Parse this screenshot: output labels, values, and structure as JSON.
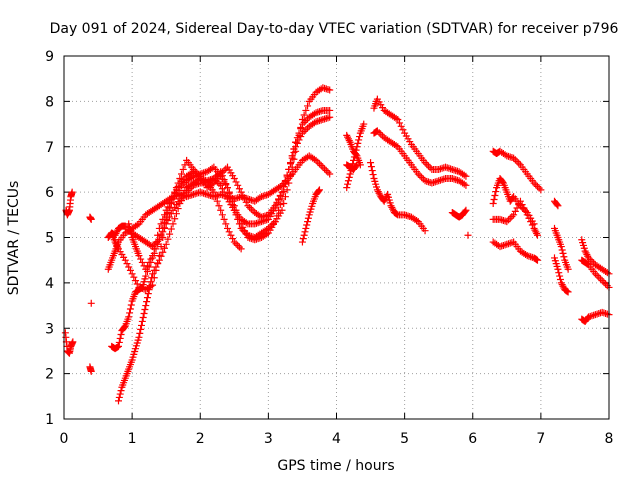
{
  "chart_data": {
    "type": "scatter",
    "title": "Day 091 of 2024, Sidereal Day-to-day VTEC variation (SDTVAR) for receiver p796",
    "xlabel": "GPS time / hours",
    "ylabel": "SDTVAR / TECUs",
    "xlim": [
      0,
      8
    ],
    "ylim": [
      1,
      9
    ],
    "xticks": [
      0,
      1,
      2,
      3,
      4,
      5,
      6,
      7,
      8
    ],
    "yticks": [
      1,
      2,
      3,
      4,
      5,
      6,
      7,
      8,
      9
    ],
    "grid": true,
    "marker": "+",
    "color": "#ff0000",
    "series": [
      {
        "name": "trace-01",
        "x": [
          0.03,
          0.05,
          0.08,
          0.1,
          0.12
        ],
        "y": [
          5.6,
          5.5,
          5.6,
          5.9,
          6.0
        ]
      },
      {
        "name": "trace-02",
        "x": [
          0.02,
          0.05,
          0.08,
          0.1,
          0.13
        ],
        "y": [
          2.9,
          2.5,
          2.45,
          2.6,
          2.7
        ]
      },
      {
        "name": "trace-03",
        "x": [
          0.38,
          0.4
        ],
        "y": [
          5.45,
          5.4
        ]
      },
      {
        "name": "trace-04",
        "x": [
          0.4
        ],
        "y": [
          3.55
        ]
      },
      {
        "name": "trace-05",
        "x": [
          0.38,
          0.4
        ],
        "y": [
          2.15,
          2.05
        ]
      },
      {
        "name": "trace-06",
        "x": [
          0.65,
          0.7,
          0.75,
          0.8,
          0.9,
          1.0,
          1.1,
          1.2,
          1.3,
          1.4,
          1.5,
          1.6,
          1.7,
          1.8,
          1.9,
          2.0,
          2.1,
          2.2,
          2.3,
          2.4,
          2.5,
          2.6,
          2.7,
          2.8,
          2.9,
          3.0,
          3.1,
          3.2,
          3.3,
          3.4,
          3.5,
          3.6,
          3.7,
          3.8,
          3.9
        ],
        "y": [
          4.3,
          4.5,
          4.7,
          4.9,
          5.1,
          5.2,
          5.3,
          5.5,
          5.6,
          5.7,
          5.8,
          5.9,
          5.95,
          5.9,
          5.95,
          6.0,
          5.95,
          5.9,
          5.95,
          5.9,
          5.85,
          5.9,
          5.85,
          5.8,
          5.9,
          5.95,
          6.05,
          6.15,
          6.3,
          6.5,
          6.7,
          6.8,
          6.7,
          6.55,
          6.4
        ]
      },
      {
        "name": "trace-07",
        "x": [
          0.65,
          0.7,
          0.75,
          0.8,
          0.9,
          1.0,
          1.1,
          1.2,
          1.3,
          1.4,
          1.5,
          1.6,
          1.7,
          1.8,
          1.9,
          2.0,
          2.1,
          2.2,
          2.3,
          2.4,
          2.5,
          2.6,
          2.7,
          2.8,
          2.9,
          3.0,
          3.1,
          3.2,
          3.3,
          3.4,
          3.5,
          3.6,
          3.7,
          3.8,
          3.9
        ],
        "y": [
          5.0,
          5.1,
          4.9,
          4.75,
          4.5,
          4.2,
          3.9,
          3.85,
          3.95,
          4.6,
          5.4,
          5.9,
          6.3,
          6.7,
          6.5,
          6.35,
          6.1,
          6.2,
          6.4,
          6.55,
          6.3,
          6.0,
          5.7,
          5.55,
          5.45,
          5.5,
          5.7,
          6.0,
          6.5,
          7.0,
          7.3,
          7.45,
          7.55,
          7.6,
          7.65
        ]
      },
      {
        "name": "trace-08",
        "x": [
          0.7,
          0.75,
          0.8,
          0.85,
          0.9,
          1.0,
          1.1,
          1.2,
          1.3,
          1.4,
          1.5,
          1.6,
          1.7,
          1.8,
          1.9,
          2.0,
          2.1,
          2.2,
          2.3,
          2.4,
          2.5,
          2.6,
          2.7,
          2.8,
          2.9,
          3.0,
          3.1,
          3.2,
          3.3,
          3.4,
          3.5,
          3.6,
          3.7,
          3.8,
          3.9
        ],
        "y": [
          5.1,
          5.05,
          5.2,
          5.25,
          5.25,
          5.1,
          5.0,
          4.9,
          4.8,
          4.95,
          5.3,
          5.6,
          5.85,
          6.1,
          6.2,
          6.3,
          6.25,
          6.3,
          6.15,
          5.85,
          5.6,
          5.4,
          5.3,
          5.3,
          5.35,
          5.4,
          5.65,
          6.0,
          6.5,
          7.1,
          7.5,
          7.65,
          7.75,
          7.8,
          7.8
        ]
      },
      {
        "name": "trace-09",
        "x": [
          0.8,
          0.85,
          0.9,
          0.95,
          1.0,
          1.05,
          1.1,
          1.15,
          1.2,
          1.25,
          1.3,
          1.4,
          1.5,
          1.6,
          1.7,
          1.8,
          1.9,
          2.0,
          2.1,
          2.2,
          2.3,
          2.4,
          2.5,
          2.6,
          2.7,
          2.8,
          2.9,
          3.0,
          3.1,
          3.2,
          3.3,
          3.4,
          3.5,
          3.6,
          3.7,
          3.8,
          3.9
        ],
        "y": [
          1.4,
          1.7,
          1.9,
          2.1,
          2.3,
          2.55,
          2.8,
          3.15,
          3.5,
          3.85,
          4.2,
          4.5,
          4.85,
          5.3,
          5.75,
          6.0,
          6.15,
          6.2,
          6.2,
          6.3,
          6.45,
          6.1,
          5.6,
          5.2,
          5.05,
          5.0,
          5.1,
          5.2,
          5.35,
          5.6,
          6.2,
          6.9,
          7.6,
          8.0,
          8.2,
          8.3,
          8.25
        ]
      },
      {
        "name": "trace-10",
        "x": [
          0.7,
          0.75,
          0.8,
          0.85,
          0.9,
          0.95,
          1.0,
          1.05,
          1.1,
          1.15,
          1.2,
          1.3,
          1.4,
          1.5,
          1.6,
          1.7,
          1.8,
          1.9,
          2.0,
          2.1,
          2.2,
          2.3,
          2.4,
          2.5,
          2.6,
          2.7,
          2.8,
          2.9,
          3.0,
          3.1,
          3.2,
          3.3,
          3.4
        ],
        "y": [
          2.6,
          2.55,
          2.6,
          2.95,
          3.05,
          3.25,
          3.6,
          3.8,
          3.85,
          3.9,
          4.15,
          4.55,
          4.95,
          5.45,
          5.85,
          6.1,
          6.25,
          6.35,
          6.4,
          6.45,
          6.55,
          6.35,
          6.1,
          5.7,
          5.3,
          5.0,
          4.95,
          5.0,
          5.1,
          5.35,
          5.85,
          6.5,
          7.1
        ]
      },
      {
        "name": "trace-11",
        "x": [
          0.95,
          1.0,
          1.05,
          1.1,
          1.2,
          1.3,
          1.4,
          1.5,
          1.6,
          1.7,
          1.8,
          1.9,
          2.0,
          2.1,
          2.2,
          2.3,
          2.4,
          2.5,
          2.6
        ],
        "y": [
          5.3,
          5.0,
          4.8,
          4.6,
          4.3,
          4.6,
          5.2,
          5.6,
          5.9,
          6.2,
          6.35,
          6.45,
          6.3,
          6.2,
          6.0,
          5.6,
          5.2,
          4.9,
          4.75
        ]
      },
      {
        "name": "trace-12",
        "x": [
          3.5,
          3.55,
          3.6,
          3.65,
          3.7,
          3.75
        ],
        "y": [
          4.9,
          5.2,
          5.5,
          5.75,
          5.95,
          6.05
        ]
      },
      {
        "name": "trace-13",
        "x": [
          4.15,
          4.2,
          4.25,
          4.3,
          4.35,
          4.4
        ],
        "y": [
          6.1,
          6.4,
          6.7,
          7.0,
          7.3,
          7.5
        ]
      },
      {
        "name": "trace-14",
        "x": [
          4.15,
          4.2,
          4.25,
          4.3,
          4.35
        ],
        "y": [
          7.25,
          7.1,
          6.9,
          6.8,
          6.6
        ]
      },
      {
        "name": "trace-15",
        "x": [
          4.15,
          4.2,
          4.25,
          4.3
        ],
        "y": [
          6.6,
          6.55,
          6.5,
          6.6
        ]
      },
      {
        "name": "trace-16",
        "x": [
          4.55,
          4.6,
          4.7,
          4.8,
          4.9,
          5.0,
          5.1,
          5.2,
          5.3,
          5.4,
          5.5,
          5.6,
          5.7,
          5.8,
          5.9
        ],
        "y": [
          7.3,
          7.35,
          7.2,
          7.1,
          7.0,
          6.8,
          6.6,
          6.4,
          6.25,
          6.2,
          6.25,
          6.3,
          6.3,
          6.25,
          6.15
        ]
      },
      {
        "name": "trace-17",
        "x": [
          4.55,
          4.6,
          4.7,
          4.8,
          4.9,
          5.0,
          5.1,
          5.2,
          5.3,
          5.4,
          5.5,
          5.6,
          5.7,
          5.8,
          5.9
        ],
        "y": [
          7.85,
          8.05,
          7.8,
          7.7,
          7.6,
          7.3,
          7.05,
          6.85,
          6.65,
          6.5,
          6.5,
          6.55,
          6.5,
          6.45,
          6.35
        ]
      },
      {
        "name": "trace-18",
        "x": [
          4.5,
          4.55,
          4.6,
          4.65,
          4.7,
          4.75,
          4.8,
          4.85,
          4.9,
          5.0,
          5.1,
          5.2,
          5.3
        ],
        "y": [
          6.65,
          6.3,
          6.05,
          5.9,
          5.8,
          5.95,
          5.7,
          5.55,
          5.5,
          5.5,
          5.45,
          5.35,
          5.15
        ]
      },
      {
        "name": "trace-19",
        "x": [
          5.7,
          5.75,
          5.8,
          5.85,
          5.9
        ],
        "y": [
          5.55,
          5.5,
          5.45,
          5.5,
          5.6
        ]
      },
      {
        "name": "trace-20",
        "x": [
          5.93
        ],
        "y": [
          5.05
        ]
      },
      {
        "name": "trace-21",
        "x": [
          6.3,
          6.35,
          6.4,
          6.5,
          6.6,
          6.7,
          6.8,
          6.9,
          7.0
        ],
        "y": [
          6.9,
          6.85,
          6.9,
          6.8,
          6.75,
          6.6,
          6.4,
          6.2,
          6.05
        ]
      },
      {
        "name": "trace-22",
        "x": [
          6.3,
          6.35,
          6.4,
          6.45,
          6.5,
          6.55,
          6.6,
          6.7,
          6.8,
          6.9
        ],
        "y": [
          5.75,
          6.1,
          6.3,
          6.2,
          6.0,
          5.8,
          5.9,
          5.7,
          5.55,
          5.3
        ]
      },
      {
        "name": "trace-23",
        "x": [
          6.3,
          6.4,
          6.5,
          6.6,
          6.7,
          6.8,
          6.9,
          6.95
        ],
        "y": [
          5.4,
          5.4,
          5.35,
          5.5,
          5.8,
          5.5,
          5.2,
          5.05
        ]
      },
      {
        "name": "trace-24",
        "x": [
          6.3,
          6.4,
          6.5,
          6.6,
          6.7,
          6.8,
          6.9,
          6.95
        ],
        "y": [
          4.9,
          4.8,
          4.85,
          4.9,
          4.7,
          4.6,
          4.55,
          4.5
        ]
      },
      {
        "name": "trace-25",
        "x": [
          7.2,
          7.25,
          7.3,
          7.35,
          7.4
        ],
        "y": [
          5.2,
          5.0,
          4.8,
          4.5,
          4.3
        ]
      },
      {
        "name": "trace-26",
        "x": [
          7.2,
          7.25,
          7.3,
          7.35,
          7.4
        ],
        "y": [
          4.55,
          4.3,
          4.0,
          3.85,
          3.8
        ]
      },
      {
        "name": "trace-27",
        "x": [
          7.2,
          7.25
        ],
        "y": [
          5.8,
          5.7
        ]
      },
      {
        "name": "trace-28",
        "x": [
          7.6,
          7.65,
          7.7,
          7.8,
          7.9,
          8.0
        ],
        "y": [
          4.95,
          4.7,
          4.55,
          4.4,
          4.3,
          4.2
        ]
      },
      {
        "name": "trace-29",
        "x": [
          7.6,
          7.65,
          7.7,
          7.8,
          7.9,
          8.0
        ],
        "y": [
          4.5,
          4.45,
          4.4,
          4.2,
          4.05,
          3.9
        ]
      },
      {
        "name": "trace-30",
        "x": [
          7.6,
          7.65,
          7.7,
          7.8,
          7.9,
          8.0
        ],
        "y": [
          3.2,
          3.15,
          3.25,
          3.3,
          3.35,
          3.3
        ]
      }
    ]
  }
}
